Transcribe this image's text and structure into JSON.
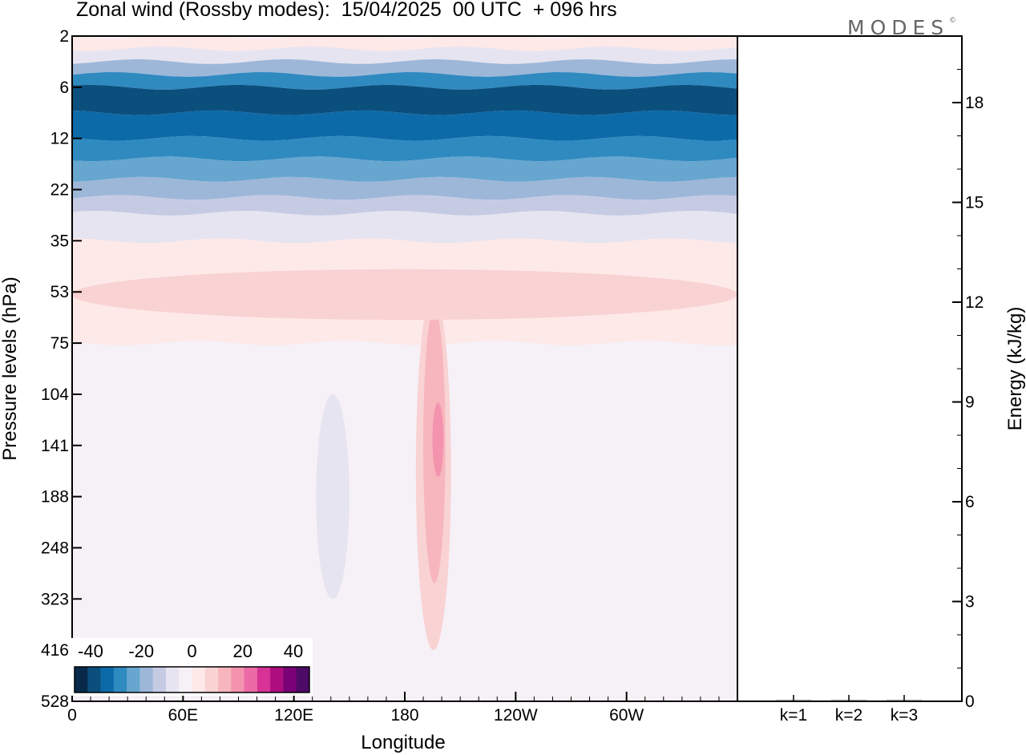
{
  "title": "Zonal wind (Rossby modes):  15/04/2025  00 UTC  + 096 hrs",
  "logo": "MODES",
  "chart_data": [
    {
      "type": "heatmap",
      "title": "Zonal wind (Rossby modes):  15/04/2025  00 UTC  + 096 hrs",
      "xlabel": "Longitude",
      "ylabel": "Pressure levels (hPa)",
      "x_ticks": [
        "0",
        "60E",
        "120E",
        "180",
        "120W",
        "60W"
      ],
      "y_ticks": [
        "2",
        "6",
        "12",
        "22",
        "35",
        "53",
        "75",
        "104",
        "141",
        "188",
        "248",
        "323",
        "416",
        "528"
      ],
      "colorbar": {
        "tick_labels": [
          "-40",
          "-20",
          "0",
          "20",
          "40"
        ],
        "colors": [
          "#08294a",
          "#0b4f7d",
          "#0d6aa8",
          "#2f8ac0",
          "#66a6cf",
          "#9db7d9",
          "#c6cbe4",
          "#e6e4f0",
          "#f6f1f7",
          "#fde9e8",
          "#f9d2d3",
          "#f7b6bd",
          "#f493ae",
          "#ec6aa5",
          "#d73396",
          "#ad0d7f",
          "#7a0177",
          "#4d0a66"
        ]
      },
      "bands": [
        {
          "level": "2",
          "color": "#fde9e8"
        },
        {
          "level": "3",
          "color": "#e6e4f0"
        },
        {
          "level": "4",
          "color": "#9db7d9"
        },
        {
          "level": "5",
          "color": "#2f8ac0"
        },
        {
          "level": "6",
          "color": "#0b4f7d"
        },
        {
          "level": "9",
          "color": "#0d6aa8"
        },
        {
          "level": "12",
          "color": "#2f8ac0"
        },
        {
          "level": "16",
          "color": "#66a6cf"
        },
        {
          "level": "20",
          "color": "#9db7d9"
        },
        {
          "level": "24",
          "color": "#c6cbe4"
        },
        {
          "level": "28",
          "color": "#e6e4f0"
        },
        {
          "level": "35",
          "color": "#fde9e8"
        },
        {
          "level": "75",
          "color": "#f6f1f7"
        }
      ],
      "features": [
        {
          "name": "jet-180",
          "lon": [
            186,
            205
          ],
          "levels": [
            "53",
            "416"
          ],
          "color": "#f9d2d3"
        },
        {
          "name": "jet-core-180",
          "lon": [
            190,
            202
          ],
          "levels": [
            "60",
            "300"
          ],
          "color": "#f7b6bd"
        },
        {
          "name": "jet-max-180",
          "lon": [
            195,
            201
          ],
          "levels": [
            "110",
            "170"
          ],
          "color": "#f493ae"
        },
        {
          "name": "band-53",
          "lon": [
            0,
            360
          ],
          "levels": [
            "45",
            "65"
          ],
          "color": "#f9d2d3"
        },
        {
          "name": "neg-150E",
          "lon": [
            132,
            150
          ],
          "levels": [
            "104",
            "323"
          ],
          "color": "#e6e4f0"
        }
      ]
    },
    {
      "type": "bar",
      "ylabel": "Energy (kJ/kg)",
      "categories": [
        "k=1",
        "k=2",
        "k=3"
      ],
      "values": [
        0.02,
        0.02,
        0.02
      ],
      "ylim": [
        0,
        20
      ],
      "y_ticks": [
        "0",
        "3",
        "6",
        "9",
        "12",
        "15",
        "18"
      ]
    }
  ]
}
